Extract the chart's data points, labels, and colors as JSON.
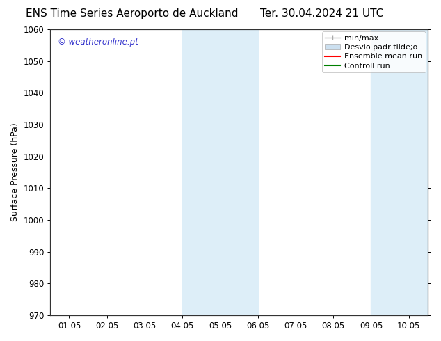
{
  "title_left": "ENS Time Series Aeroporto de Auckland",
  "title_right": "Ter. 30.04.2024 21 UTC",
  "ylabel": "Surface Pressure (hPa)",
  "xlabel_ticks": [
    "01.05",
    "02.05",
    "03.05",
    "04.05",
    "05.05",
    "06.05",
    "07.05",
    "08.05",
    "09.05",
    "10.05"
  ],
  "ylim": [
    970,
    1060
  ],
  "yticks": [
    970,
    980,
    990,
    1000,
    1010,
    1020,
    1030,
    1040,
    1050,
    1060
  ],
  "watermark": "© weatheronline.pt",
  "watermark_color": "#3333cc",
  "bg_color": "#ffffff",
  "plot_bg_color": "#ffffff",
  "shaded_regions": [
    {
      "xstart": 3.0,
      "xend": 5.0,
      "color": "#ddeef8"
    },
    {
      "xstart": 8.0,
      "xend": 9.5,
      "color": "#ddeef8"
    }
  ],
  "legend_entries": [
    {
      "label": "min/max",
      "color": "#aaaaaa",
      "style": "minmax"
    },
    {
      "label": "Desvio padr tilde;o",
      "color": "#cce0f0",
      "style": "band"
    },
    {
      "label": "Ensemble mean run",
      "color": "#ff0000",
      "style": "line"
    },
    {
      "label": "Controll run",
      "color": "#008000",
      "style": "line"
    }
  ],
  "title_fontsize": 11,
  "tick_label_fontsize": 8.5,
  "axis_label_fontsize": 9,
  "watermark_fontsize": 8.5,
  "legend_fontsize": 8,
  "figsize": [
    6.34,
    4.9
  ],
  "dpi": 100
}
